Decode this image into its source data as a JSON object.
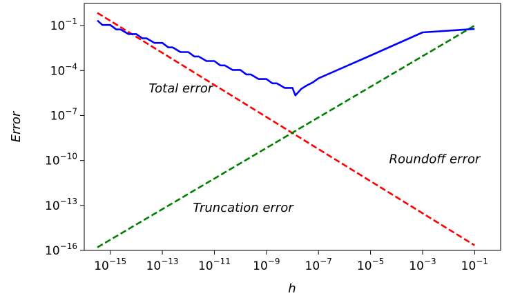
{
  "chart_data": {
    "type": "line",
    "xlabel": "h",
    "ylabel": "Error",
    "xscale": "log",
    "yscale": "log",
    "xlim": [
      1e-16,
      1
    ],
    "ylim": [
      1e-16,
      3
    ],
    "xticks": [
      {
        "value": 1e-15,
        "base": "10",
        "exp": "−15"
      },
      {
        "value": 1e-13,
        "base": "10",
        "exp": "−13"
      },
      {
        "value": 1e-11,
        "base": "10",
        "exp": "−11"
      },
      {
        "value": 1e-09,
        "base": "10",
        "exp": "−9"
      },
      {
        "value": 1e-07,
        "base": "10",
        "exp": "−7"
      },
      {
        "value": 1e-05,
        "base": "10",
        "exp": "−5"
      },
      {
        "value": 0.001,
        "base": "10",
        "exp": "−3"
      },
      {
        "value": 0.1,
        "base": "10",
        "exp": "−1"
      }
    ],
    "yticks": [
      {
        "value": 1e-16,
        "base": "10",
        "exp": "−16"
      },
      {
        "value": 1e-13,
        "base": "10",
        "exp": "−13"
      },
      {
        "value": 1e-10,
        "base": "10",
        "exp": "−10"
      },
      {
        "value": 1e-07,
        "base": "10",
        "exp": "−7"
      },
      {
        "value": 0.0001,
        "base": "10",
        "exp": "−4"
      },
      {
        "value": 0.1,
        "base": "10",
        "exp": "−1"
      }
    ],
    "series": [
      {
        "name": "Roundoff error",
        "color": "#ff0000",
        "style": "dashed",
        "x": [
          3.2e-16,
          0.1
        ],
        "y": [
          0.71,
          2.2e-16
        ]
      },
      {
        "name": "Truncation error",
        "color": "#008000",
        "style": "dashed",
        "x": [
          3.2e-16,
          0.1
        ],
        "y": [
          1.6e-16,
          0.1
        ]
      },
      {
        "name": "Total error",
        "color": "#0000ff",
        "style": "solid",
        "x": [
          3.2e-16,
          5e-16,
          1e-15,
          1.7e-15,
          2.5e-15,
          5e-15,
          1e-14,
          1.7e-14,
          2.5e-14,
          5e-14,
          1e-13,
          1.7e-13,
          2.5e-13,
          5e-13,
          1e-12,
          1.7e-12,
          2.5e-12,
          5e-12,
          1e-11,
          1.7e-11,
          2.5e-11,
          5e-11,
          1e-10,
          1.7e-10,
          2.5e-10,
          5e-10,
          1e-09,
          1.7e-09,
          2.5e-09,
          5e-09,
          1e-08,
          1.3e-08,
          2.2e-08,
          3.5e-08,
          6e-08,
          1e-07,
          1e-05,
          0.001,
          0.1
        ],
        "y": [
          0.22,
          0.11,
          0.11,
          0.055,
          0.055,
          0.027,
          0.027,
          0.014,
          0.014,
          0.007,
          0.007,
          0.0035,
          0.0035,
          0.0017,
          0.0017,
          0.00087,
          0.00087,
          0.00043,
          0.00043,
          0.00022,
          0.00022,
          0.00011,
          0.00011,
          5.5e-05,
          5.5e-05,
          2.7e-05,
          2.7e-05,
          1.4e-05,
          1.4e-05,
          7e-06,
          7e-06,
          2.2e-06,
          6e-06,
          1e-05,
          1.6e-05,
          3e-05,
          0.001,
          0.035,
          0.06
        ]
      }
    ],
    "annotations": [
      {
        "text": "Total error",
        "x": 3e-14,
        "y": 3.4e-06
      },
      {
        "text": "Roundoff error",
        "x": 5.2e-05,
        "y": 6.5e-11
      },
      {
        "text": "Truncation error",
        "x": 1.5e-12,
        "y": 3.8e-14
      }
    ]
  }
}
